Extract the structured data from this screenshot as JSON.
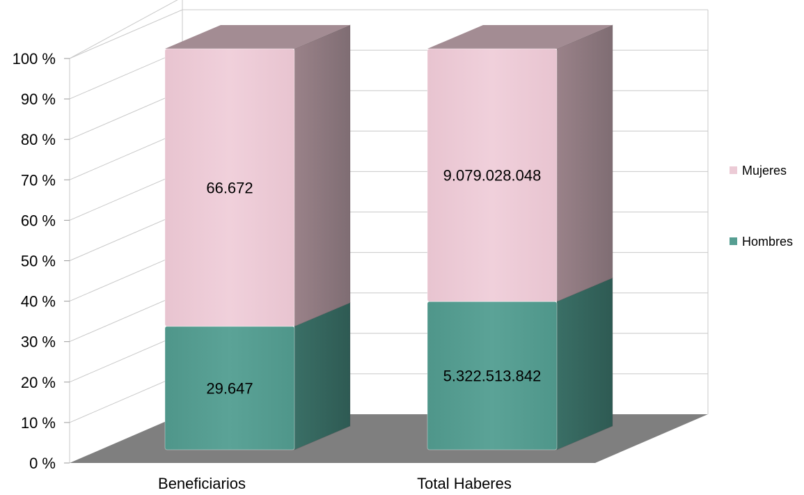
{
  "chart_data": {
    "type": "bar",
    "stacked": "percent",
    "three_d": true,
    "categories": [
      "Beneficiarios",
      "Total Haberes"
    ],
    "series": [
      {
        "name": "Hombres",
        "values": [
          29647,
          5322513842
        ],
        "labels": [
          "29.647",
          "5.322.513.842"
        ],
        "color": "#569e92"
      },
      {
        "name": "Mujeres",
        "values": [
          66672,
          9079028048
        ],
        "labels": [
          "66.672",
          "9.079.028.048"
        ],
        "color": "#eccbd6"
      }
    ],
    "y_ticks": [
      "0 %",
      "10 %",
      "20 %",
      "30 %",
      "40 %",
      "50 %",
      "60 %",
      "70 %",
      "80 %",
      "90 %",
      "100 %"
    ],
    "ylim": [
      0,
      100
    ],
    "grid": true,
    "legend": "right",
    "colors": {
      "floor": "#7f7f7f",
      "grid": "#c8c8c8",
      "label": "#000000"
    }
  }
}
